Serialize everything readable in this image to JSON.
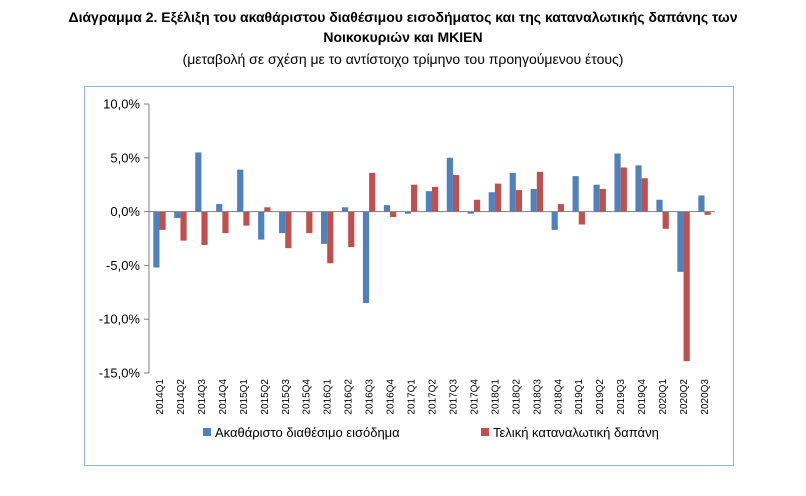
{
  "header": {
    "title_line1": "Διάγραμμα 2. Εξέλιξη του ακαθάριστου διαθέσιμου εισοδήματος και της καταναλωτικής δαπάνης των",
    "title_line2": "Νοικοκυριών και ΜΚΙΕΝ",
    "subtitle": "(μεταβολή σε σχέση με το αντίστοιχο τρίμηνο του προηγούμενου έτους)"
  },
  "chart_data": {
    "type": "bar",
    "title": "Διάγραμμα 2. Εξέλιξη του ακαθάριστου διαθέσιμου εισοδήματος και της καταναλωτικής δαπάνης των Νοικοκυριών και ΜΚΙΕΝ",
    "subtitle": "(μεταβολή σε σχέση με το αντίστοιχο τρίμηνο του προηγούμενου έτους)",
    "categories": [
      "2014Q1",
      "2014Q2",
      "2014Q3",
      "2014Q4",
      "2015Q1",
      "2015Q2",
      "2015Q3",
      "2015Q4",
      "2016Q1",
      "2016Q2",
      "2016Q3",
      "2016Q4",
      "2017Q1",
      "2017Q2",
      "2017Q3",
      "2017Q4",
      "2018Q1",
      "2018Q2",
      "2018Q3",
      "2018Q4",
      "2019Q1",
      "2019Q2",
      "2019Q3",
      "2019Q4",
      "2020Q1",
      "2020Q2",
      "2020Q3"
    ],
    "series": [
      {
        "name": "Ακαθάριστο διαθέσιμο εισόδημα",
        "color": "#4f81bd",
        "values": [
          -5.2,
          -0.6,
          5.5,
          0.7,
          3.9,
          -2.6,
          -2.0,
          0.0,
          -3.0,
          0.4,
          -8.5,
          0.6,
          -0.2,
          1.9,
          5.0,
          -0.2,
          1.8,
          3.6,
          2.1,
          -1.7,
          3.3,
          2.5,
          5.4,
          4.3,
          1.1,
          -5.6,
          1.5
        ]
      },
      {
        "name": "Τελική καταναλωτική δαπάνη",
        "color": "#c0504d",
        "values": [
          -1.7,
          -2.7,
          -3.1,
          -2.0,
          -1.3,
          0.4,
          -3.4,
          -2.0,
          -4.8,
          -3.3,
          3.6,
          -0.5,
          2.5,
          2.3,
          3.4,
          1.1,
          2.6,
          2.0,
          3.7,
          0.7,
          -1.2,
          2.1,
          4.1,
          3.1,
          -1.6,
          -13.9,
          -0.3
        ]
      }
    ],
    "y_ticks": [
      "10,0%",
      "5,0%",
      "0,0%",
      "-5,0%",
      "-10,0%",
      "-15,0%"
    ],
    "ylim": [
      -15,
      10
    ],
    "xlabel": "",
    "ylabel": "",
    "grid": false,
    "legend_position": "bottom"
  }
}
